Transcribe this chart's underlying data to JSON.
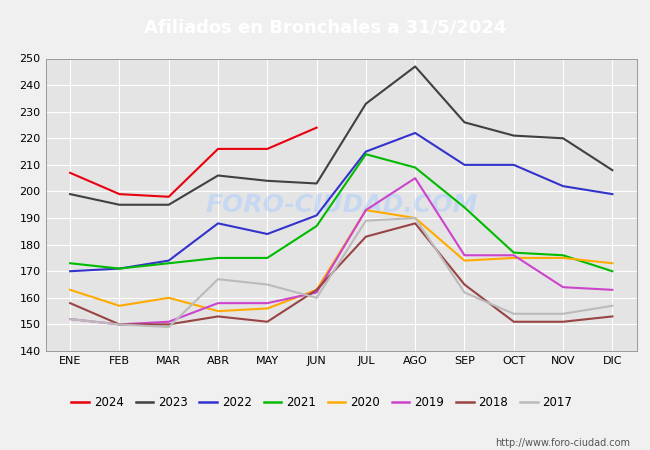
{
  "title": "Afiliados en Bronchales a 31/5/2024",
  "title_color": "#ffffff",
  "title_bg_color": "#4472c4",
  "xlabel": "",
  "ylabel": "",
  "ylim": [
    140,
    250
  ],
  "yticks": [
    140,
    150,
    160,
    170,
    180,
    190,
    200,
    210,
    220,
    230,
    240,
    250
  ],
  "months": [
    "ENE",
    "FEB",
    "MAR",
    "ABR",
    "MAY",
    "JUN",
    "JUL",
    "AGO",
    "SEP",
    "OCT",
    "NOV",
    "DIC"
  ],
  "series": {
    "2024": {
      "color": "#e8000e",
      "data": [
        207,
        199,
        198,
        216,
        216,
        224,
        null,
        null,
        null,
        null,
        null,
        null
      ]
    },
    "2023": {
      "color": "#404040",
      "data": [
        199,
        195,
        195,
        206,
        204,
        203,
        233,
        247,
        226,
        221,
        220,
        208
      ]
    },
    "2022": {
      "color": "#3333cc",
      "data": [
        170,
        171,
        174,
        188,
        184,
        191,
        215,
        222,
        210,
        210,
        202,
        199
      ]
    },
    "2021": {
      "color": "#00bb00",
      "data": [
        173,
        171,
        173,
        175,
        175,
        187,
        214,
        209,
        194,
        177,
        176,
        170
      ]
    },
    "2020": {
      "color": "#ffaa00",
      "data": [
        163,
        157,
        160,
        155,
        156,
        163,
        193,
        190,
        174,
        175,
        175,
        173
      ]
    },
    "2019": {
      "color": "#cc44cc",
      "data": [
        152,
        150,
        151,
        158,
        158,
        162,
        193,
        205,
        176,
        176,
        164,
        163
      ]
    },
    "2018": {
      "color": "#994444",
      "data": [
        158,
        150,
        150,
        153,
        151,
        163,
        183,
        188,
        165,
        151,
        151,
        153
      ]
    },
    "2017": {
      "color": "#bbbbbb",
      "data": [
        152,
        150,
        149,
        167,
        165,
        160,
        189,
        190,
        162,
        154,
        154,
        157
      ]
    }
  },
  "watermark": "FORO-CIUDAD.COM",
  "url": "http://www.foro-ciudad.com",
  "bg_color": "#f0f0f0",
  "plot_bg_color": "#e4e4e4",
  "grid_color": "#ffffff",
  "legend_ncol": 8
}
